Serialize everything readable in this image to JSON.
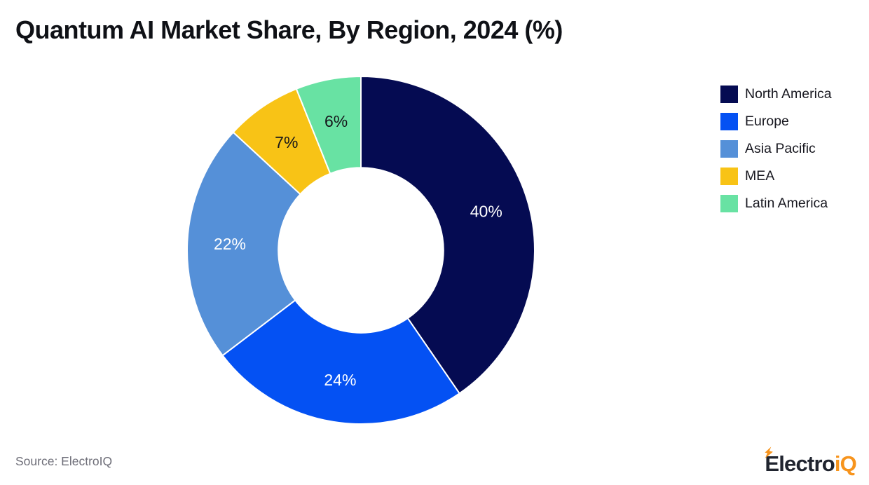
{
  "header": {
    "title": "Quantum AI Market Share, By Region, 2024 (%)"
  },
  "chart_data": {
    "type": "pie",
    "subtype": "donut",
    "title": "Quantum AI Market Share, By Region, 2024 (%)",
    "categories": [
      "North America",
      "Europe",
      "Asia Pacific",
      "MEA",
      "Latin America"
    ],
    "values": [
      40,
      24,
      22,
      7,
      6
    ],
    "data_labels": [
      "40%",
      "24%",
      "22%",
      "7%",
      "6%"
    ],
    "slice_colors": [
      "#050b52",
      "#0451f3",
      "#5590d8",
      "#f8c316",
      "#68e2a3"
    ],
    "data_label_colors": [
      "#ffffff",
      "#ffffff",
      "#ffffff",
      "#15151a",
      "#15151a"
    ],
    "start_angle_deg": 0,
    "direction": "clockwise",
    "inner_radius_ratio": 0.475,
    "label_radius_ratio": 0.755,
    "legend_position": "right",
    "background": "#ffffff"
  },
  "legend": {
    "items": [
      {
        "label": "North America",
        "color": "#050b52"
      },
      {
        "label": "Europe",
        "color": "#0451f3"
      },
      {
        "label": "Asia Pacific",
        "color": "#5590d8"
      },
      {
        "label": "MEA",
        "color": "#f8c316"
      },
      {
        "label": "Latin America",
        "color": "#68e2a3"
      }
    ]
  },
  "footer": {
    "source": "Source: ElectroIQ"
  },
  "logo": {
    "text_dark": "Electro",
    "text_accent": "iQ",
    "dark_color": "#20242f",
    "accent_color": "#f7941d"
  }
}
